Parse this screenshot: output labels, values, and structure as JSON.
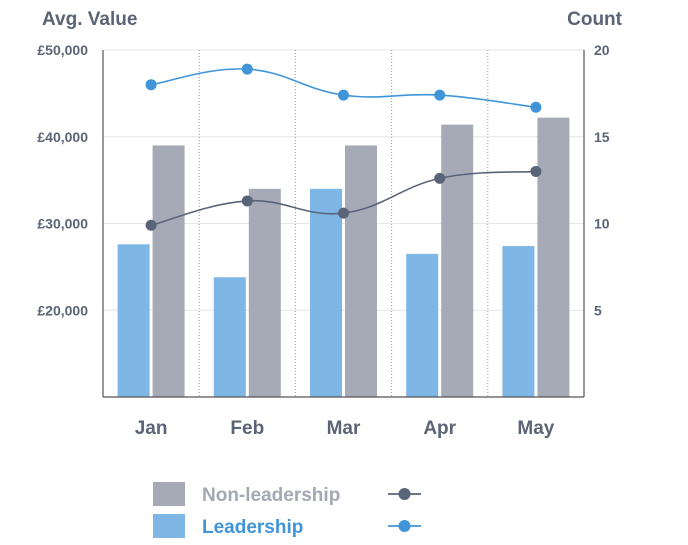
{
  "chart_data": {
    "type": "bar+line",
    "left_axis_title": "Avg. Value",
    "right_axis_title": "Count",
    "categories": [
      "Jan",
      "Feb",
      "Mar",
      "Apr",
      "May"
    ],
    "left_axis": {
      "min": 10000,
      "max": 50000,
      "ticks": [
        20000,
        30000,
        40000,
        50000
      ],
      "tick_labels": [
        "£20,000",
        "£30,000",
        "£40,000",
        "£50,000"
      ]
    },
    "right_axis": {
      "min": 0,
      "max": 20,
      "ticks": [
        5,
        10,
        15,
        20
      ],
      "tick_labels": [
        "5",
        "10",
        "15",
        "20"
      ]
    },
    "bar_series": [
      {
        "name": "Leadership",
        "axis": "left",
        "color": "#7eb6e6",
        "values": [
          27600,
          23800,
          34000,
          26500,
          27400
        ]
      },
      {
        "name": "Non-leadership",
        "axis": "left",
        "color": "#a6aab6",
        "values": [
          39000,
          34000,
          39000,
          41400,
          42200
        ]
      }
    ],
    "line_series": [
      {
        "name": "Leadership",
        "axis": "right",
        "color": "#3f95d8",
        "values": [
          18.0,
          18.9,
          17.4,
          17.4,
          16.7
        ]
      },
      {
        "name": "Non-leadership",
        "axis": "right",
        "color": "#5a6478",
        "values": [
          9.9,
          11.3,
          10.6,
          12.6,
          13.0
        ]
      }
    ],
    "legend": [
      {
        "label": "Non-leadership",
        "bar_color": "#a6aab6",
        "line_color": "#5a6478",
        "text_color": "#a3a8b2"
      },
      {
        "label": "Leadership",
        "bar_color": "#7eb6e6",
        "line_color": "#3f95d8",
        "text_color": "#3f95d8"
      }
    ],
    "grid": true,
    "legend_placement": "bottom"
  }
}
